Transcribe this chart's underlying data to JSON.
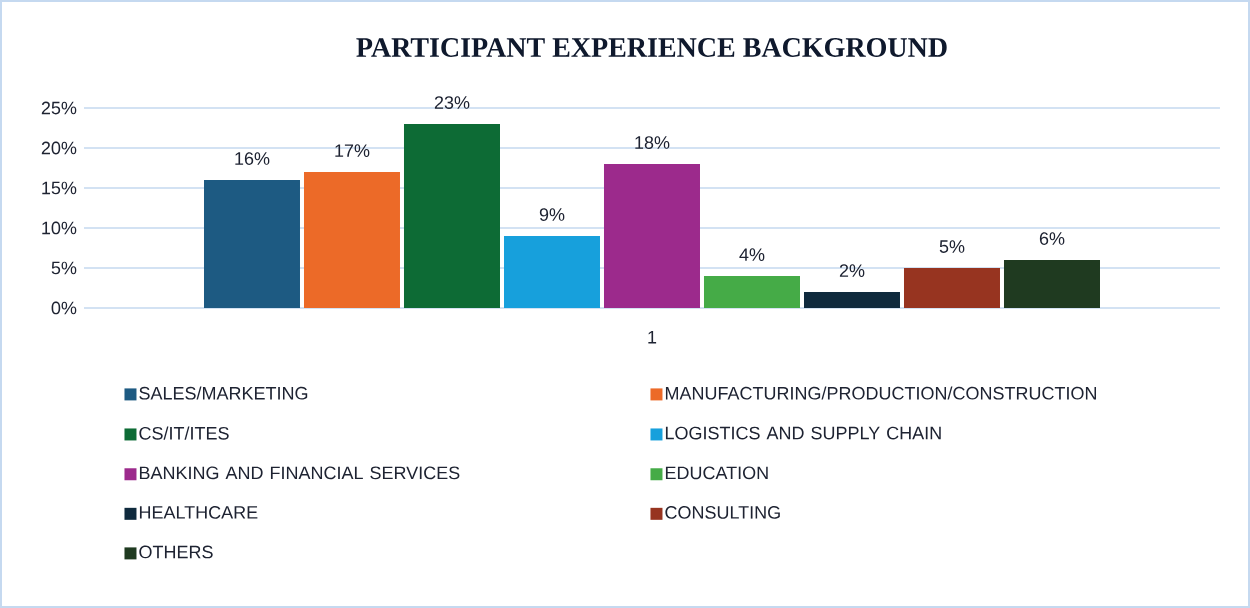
{
  "chart_data": {
    "type": "bar",
    "title": "PARTICIPANT EXPERIENCE BACKGROUND",
    "categories": [
      "1"
    ],
    "series": [
      {
        "name": "SALES/MARKETING",
        "color": "#1d5a82",
        "values": [
          16
        ],
        "value_labels": [
          "16%"
        ]
      },
      {
        "name": "MANUFACTURING/PRODUCTION/CONSTRUCTION",
        "color": "#ec6a28",
        "values": [
          17
        ],
        "value_labels": [
          "17%"
        ]
      },
      {
        "name": "CS/IT/ITES",
        "color": "#0d6b35",
        "values": [
          23
        ],
        "value_labels": [
          "23%"
        ]
      },
      {
        "name": "LOGISTICS AND SUPPLY CHAIN",
        "color": "#17a0dc",
        "values": [
          9
        ],
        "value_labels": [
          "9%"
        ]
      },
      {
        "name": "BANKING AND FINANCIAL SERVICES",
        "color": "#9c2a8c",
        "values": [
          18
        ],
        "value_labels": [
          "18%"
        ]
      },
      {
        "name": "EDUCATION",
        "color": "#45ab47",
        "values": [
          4
        ],
        "value_labels": [
          "4%"
        ]
      },
      {
        "name": "HEALTHCARE",
        "color": "#0f2a3d",
        "values": [
          2
        ],
        "value_labels": [
          "2%"
        ]
      },
      {
        "name": "CONSULTING",
        "color": "#973420",
        "values": [
          5
        ],
        "value_labels": [
          "5%"
        ]
      },
      {
        "name": "OTHERS",
        "color": "#1f3a20",
        "values": [
          6
        ],
        "value_labels": [
          "6%"
        ]
      }
    ],
    "ylim": [
      0,
      25
    ],
    "yticks": [
      {
        "value": 0,
        "label": "0%"
      },
      {
        "value": 5,
        "label": "5%"
      },
      {
        "value": 10,
        "label": "10%"
      },
      {
        "value": 15,
        "label": "15%"
      },
      {
        "value": 20,
        "label": "20%"
      },
      {
        "value": 25,
        "label": "25%"
      }
    ],
    "grid": "y",
    "legend": "bottom"
  }
}
